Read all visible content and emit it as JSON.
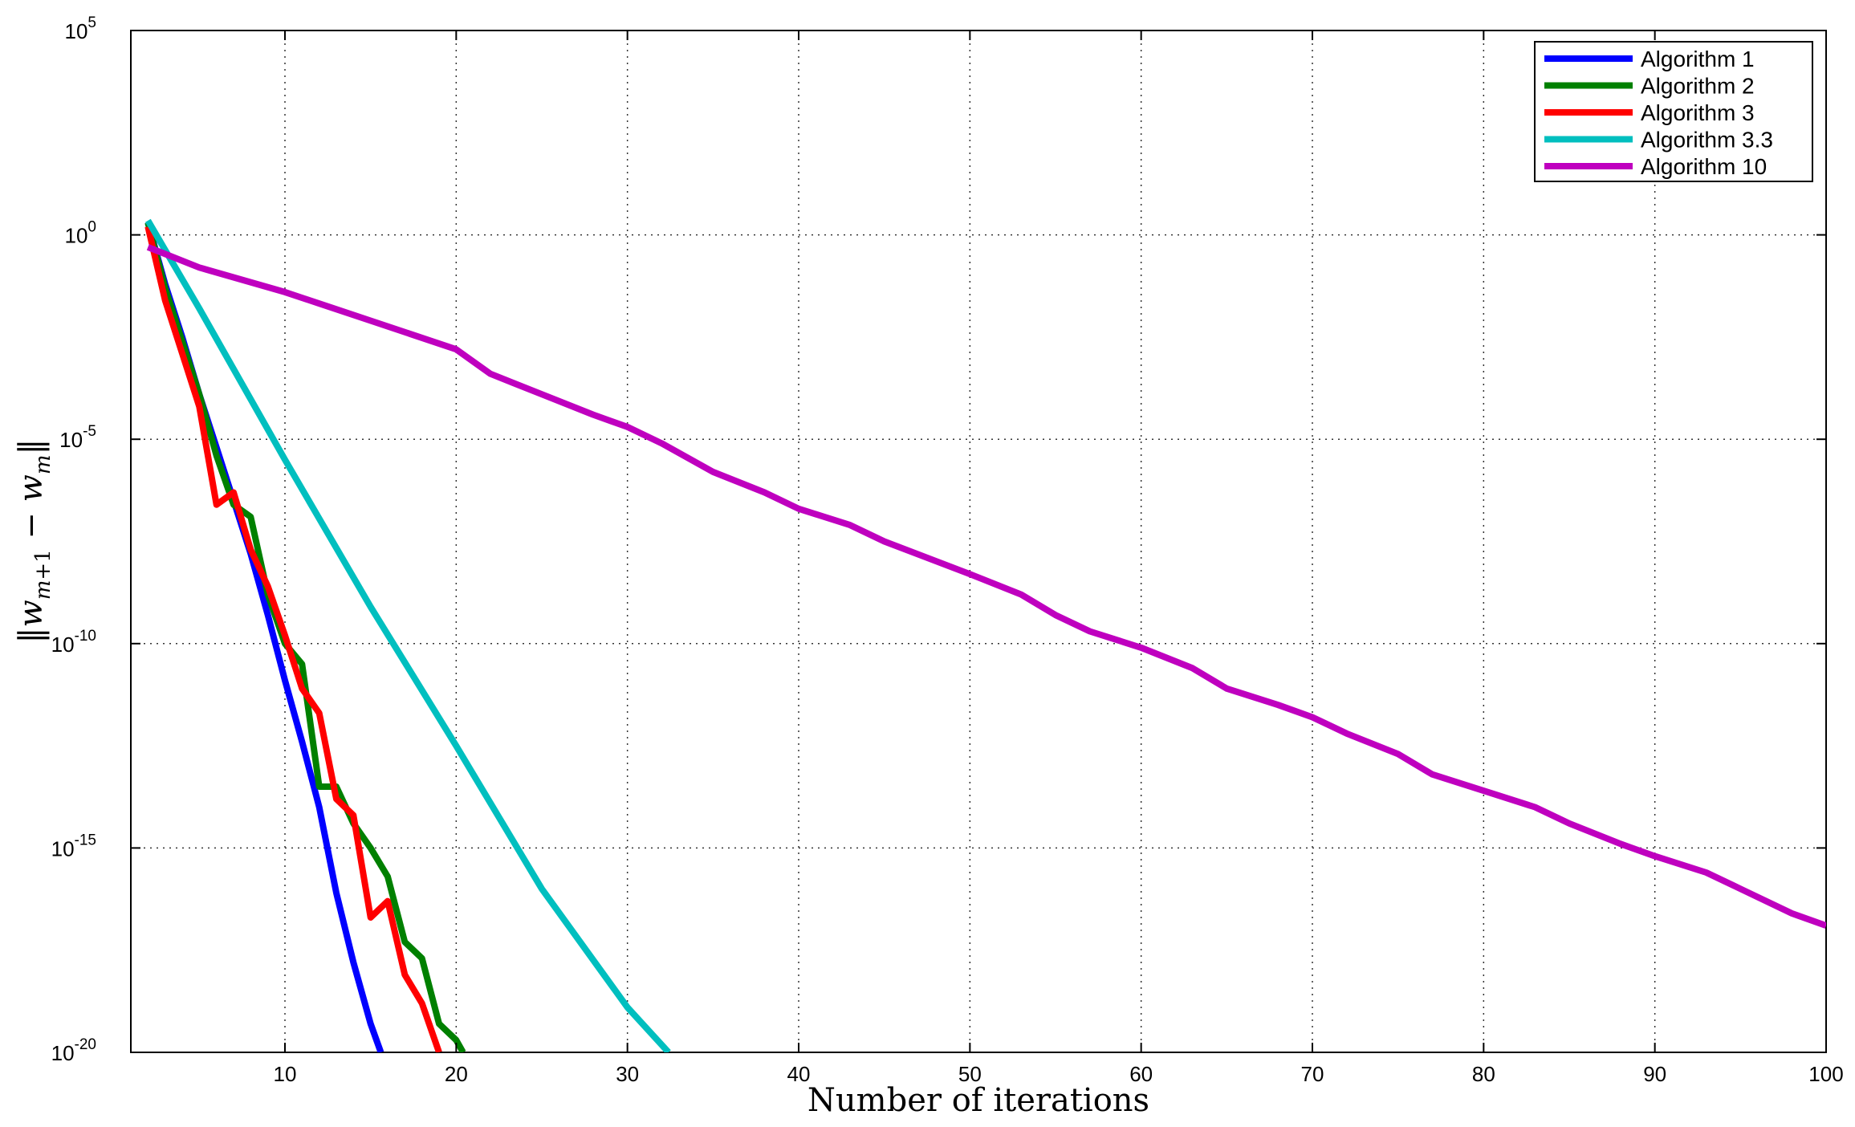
{
  "chart_data": {
    "type": "line",
    "title": "",
    "xlabel": "Number of iterations",
    "ylabel": "‖w_{m+1} − w_m‖",
    "xscale": "linear",
    "yscale": "log",
    "xlim": [
      1,
      100
    ],
    "ylim_exponent": [
      -20,
      5
    ],
    "grid": true,
    "legend_position": "top-right",
    "x_ticks": [
      10,
      20,
      30,
      40,
      50,
      60,
      70,
      80,
      90,
      100
    ],
    "y_ticks": [
      {
        "base": "10",
        "exp": "5",
        "value_exponent": 5
      },
      {
        "base": "10",
        "exp": "0",
        "value_exponent": 0
      },
      {
        "base": "10",
        "exp": "-5",
        "value_exponent": -5
      },
      {
        "base": "10",
        "exp": "-10",
        "value_exponent": -10
      },
      {
        "base": "10",
        "exp": "-15",
        "value_exponent": -15
      },
      {
        "base": "10",
        "exp": "-20",
        "value_exponent": -20
      }
    ],
    "series": [
      {
        "name": "Algorithm 1",
        "color": "#0000FF",
        "x": [
          2,
          3,
          4,
          5,
          6,
          7,
          8,
          9,
          10,
          11,
          12,
          13,
          14,
          15,
          15.6
        ],
        "log10_y": [
          0.3,
          -1.2,
          -2.5,
          -3.9,
          -5.2,
          -6.5,
          -7.8,
          -9.3,
          -10.9,
          -12.4,
          -14.0,
          -16.1,
          -17.8,
          -19.3,
          -20.0
        ]
      },
      {
        "name": "Algorithm 2",
        "color": "#008000",
        "x": [
          2,
          3,
          4,
          5,
          6,
          7,
          8,
          9,
          10,
          11,
          12,
          13,
          14,
          15,
          16,
          17,
          18,
          19,
          20,
          20.4
        ],
        "log10_y": [
          0.3,
          -1.3,
          -2.6,
          -3.9,
          -5.4,
          -6.6,
          -6.9,
          -8.8,
          -10.0,
          -10.5,
          -13.5,
          -13.5,
          -14.4,
          -15.0,
          -15.7,
          -17.3,
          -17.7,
          -19.3,
          -19.7,
          -20.0
        ]
      },
      {
        "name": "Algorithm 3",
        "color": "#FF0000",
        "x": [
          2,
          3,
          4,
          5,
          6,
          7,
          8,
          9,
          10,
          11,
          12,
          13,
          14,
          15,
          16,
          17,
          18,
          19
        ],
        "log10_y": [
          0.2,
          -1.6,
          -2.9,
          -4.2,
          -6.6,
          -6.3,
          -7.7,
          -8.6,
          -9.8,
          -11.1,
          -11.7,
          -13.8,
          -14.2,
          -16.7,
          -16.3,
          -18.1,
          -18.8,
          -20.0
        ]
      },
      {
        "name": "Algorithm 3.3",
        "color": "#00BFBF",
        "x": [
          2,
          5,
          10,
          15,
          20,
          25,
          30,
          32.4
        ],
        "log10_y": [
          0.35,
          -1.8,
          -5.5,
          -9.1,
          -12.5,
          -16.0,
          -18.9,
          -20.0
        ]
      },
      {
        "name": "Algorithm 10",
        "color": "#BF00BF",
        "x": [
          2,
          5,
          10,
          15,
          20,
          22,
          25,
          28,
          30,
          32,
          35,
          38,
          40,
          43,
          45,
          50,
          53,
          55,
          57,
          60,
          63,
          65,
          68,
          70,
          72,
          75,
          77,
          80,
          83,
          85,
          88,
          90,
          93,
          95,
          98,
          100
        ],
        "log10_y": [
          -0.3,
          -0.8,
          -1.4,
          -2.1,
          -2.8,
          -3.4,
          -3.9,
          -4.4,
          -4.7,
          -5.1,
          -5.8,
          -6.3,
          -6.7,
          -7.1,
          -7.5,
          -8.3,
          -8.8,
          -9.3,
          -9.7,
          -10.1,
          -10.6,
          -11.1,
          -11.5,
          -11.8,
          -12.2,
          -12.7,
          -13.2,
          -13.6,
          -14.0,
          -14.4,
          -14.9,
          -15.2,
          -15.6,
          -16.0,
          -16.6,
          -16.9
        ]
      }
    ]
  }
}
